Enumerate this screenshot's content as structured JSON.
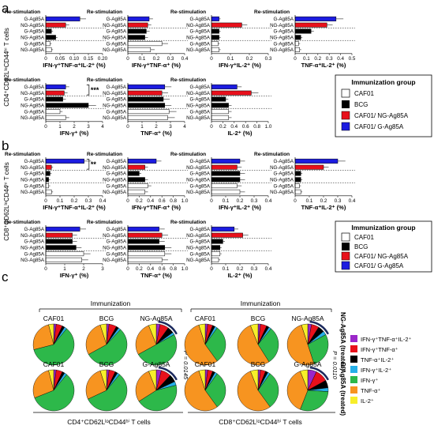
{
  "panel_labels": [
    "a",
    "b",
    "c"
  ],
  "restim_label": "Re-stimulation",
  "row_labels": [
    "G-Ag85A",
    "NG-Ag85A",
    "G-Ag85A",
    "NG-Ag85A",
    "G-Ag85A",
    "NG-Ag85A"
  ],
  "legend": {
    "title": "Immunization group",
    "items": [
      {
        "label": "CAF01",
        "color": "#ffffff"
      },
      {
        "label": "BCG",
        "color": "#000000"
      },
      {
        "label": "CAF01/ NG-Ag85A",
        "color": "#e8101b"
      },
      {
        "label": "CAF01/ G-Ag85A",
        "color": "#1c1ce0"
      }
    ]
  },
  "group_colors": [
    "#1c1ce0",
    "#e8101b",
    "#000000",
    "#000000",
    "#ffffff",
    "#ffffff"
  ],
  "sections": {
    "a": {
      "ylabel": "CD4⁺CD62LˡᵒCD44ʰⁱ T cells",
      "panels": [
        {
          "xlabel": "IFN-γ⁺TNF-α⁺IL-2⁺ (%)",
          "ticks": [
            "0",
            "0.05",
            "0.10",
            "0.15",
            "0.20"
          ],
          "max": 0.2,
          "values": [
            0.12,
            0.07,
            0.02,
            0.035,
            0.015,
            0.02
          ],
          "sig": ""
        },
        {
          "xlabel": "IFN-γ⁺TNF-α⁺ (%)",
          "ticks": [
            "0",
            "0.1",
            "0.2",
            "0.3",
            "0.4"
          ],
          "max": 0.4,
          "values": [
            0.15,
            0.14,
            0.13,
            0.12,
            0.24,
            0.16
          ],
          "sig": ""
        },
        {
          "xlabel": "IFN-γ⁺IL-2⁺ (%)",
          "ticks": [
            "0",
            "0.1",
            "0.2",
            "0.3"
          ],
          "max": 0.3,
          "values": [
            0.04,
            0.16,
            0.04,
            0.04,
            0.035,
            0.04
          ],
          "sig": ""
        },
        {
          "xlabel": "TNF-α⁺IL-2⁺ (%)",
          "ticks": [
            "0",
            "0.1",
            "0.2",
            "0.3",
            "0.4",
            "0.5"
          ],
          "max": 0.5,
          "values": [
            0.36,
            0.28,
            0.14,
            0.05,
            0.03,
            0.04
          ],
          "sig": ""
        },
        {
          "xlabel": "IFN-γ⁺ (%)",
          "ticks": [
            "0",
            "1",
            "2",
            "3",
            "4"
          ],
          "max": 4,
          "values": [
            1.4,
            1.3,
            1.2,
            3.0,
            1.0,
            1.4
          ],
          "sig": "***"
        },
        {
          "xlabel": "TNF-α⁺ (%)",
          "ticks": [
            "0",
            "1",
            "2",
            "3",
            "4"
          ],
          "max": 4,
          "values": [
            2.6,
            2.4,
            2.5,
            2.6,
            2.9,
            2.8
          ],
          "sig": ""
        },
        {
          "xlabel": "IL-2⁺ (%)",
          "ticks": [
            "0",
            "0.2",
            "0.4",
            "0.6",
            "0.8",
            "1.0"
          ],
          "max": 1.0,
          "values": [
            0.45,
            0.7,
            0.25,
            0.3,
            0.3,
            0.3
          ],
          "sig": ""
        }
      ]
    },
    "b": {
      "ylabel": "CD8⁺CD62LˡᵒCD44ʰⁱ T cells",
      "panels": [
        {
          "xlabel": "IFN-γ⁺TNF-α⁺IL-2⁺ (%)",
          "ticks": [
            "0",
            "0.1",
            "0.2",
            "0.3",
            "0.4"
          ],
          "max": 0.4,
          "values": [
            0.27,
            0.04,
            0.03,
            0.02,
            0.02,
            0.04
          ],
          "sig": "**"
        },
        {
          "xlabel": "IFN-γ⁺TNF-α⁺ (%)",
          "ticks": [
            "0",
            "0.2",
            "0.4",
            "0.6",
            "0.8",
            "1.0"
          ],
          "max": 1.0,
          "values": [
            0.5,
            0.3,
            0.2,
            0.3,
            0.35,
            0.3
          ],
          "sig": ""
        },
        {
          "xlabel": "IFN-γ⁺IL-2⁺ (%)",
          "ticks": [
            "0",
            "0.1",
            "0.2",
            "0.3",
            "0.4"
          ],
          "max": 0.4,
          "values": [
            0.2,
            0.18,
            0.2,
            0.2,
            0.18,
            0.2
          ],
          "sig": ""
        },
        {
          "xlabel": "TNF-α⁺IL-2⁺ (%)",
          "ticks": [
            "0",
            "0.1",
            "0.2",
            "0.3",
            "0.4"
          ],
          "max": 0.4,
          "values": [
            0.3,
            0.2,
            0.04,
            0.04,
            0.03,
            0.04
          ],
          "sig": ""
        },
        {
          "xlabel": "IFN-γ⁺ (%)",
          "ticks": [
            "0",
            "1",
            "2",
            "3"
          ],
          "max": 3,
          "values": [
            1.8,
            1.4,
            1.4,
            1.6,
            2.0,
            1.9
          ],
          "sig": ""
        },
        {
          "xlabel": "TNF-α⁺ (%)",
          "ticks": [
            "0",
            "0.2",
            "0.4",
            "0.6",
            "0.8",
            "1.0"
          ],
          "max": 1.0,
          "values": [
            0.55,
            0.6,
            0.55,
            0.65,
            0.65,
            0.6
          ],
          "sig": ""
        },
        {
          "xlabel": "IL-2⁺ (%)",
          "ticks": [
            "0",
            "0.1",
            "0.2",
            "0.3",
            "0.4"
          ],
          "max": 0.4,
          "values": [
            0.16,
            0.22,
            0.08,
            0.06,
            0.06,
            0.05
          ],
          "sig": ""
        }
      ]
    }
  },
  "section_c": {
    "immunization_label": "Immunization",
    "cd4_caption": "CD4⁺CD62LˡᵒCD44ʰⁱ T cells",
    "cd8_caption": "CD8⁺CD62LˡᵒCD44ʰⁱ T cells",
    "pval_cd4": "P = 0.0145",
    "pval_cd8": "P = 0.0110",
    "row1_side": "NG-Ag85A (treated)",
    "row2_side": "G-Ag85A (treated)",
    "pie_labels": [
      "CAF01",
      "BCG",
      "NG-Ag85A",
      "CAF01",
      "BCG",
      "G-Ag85A"
    ],
    "legend": [
      {
        "label": "IFN-γ⁺TNF-α⁺IL-2⁺",
        "color": "#9b27c9"
      },
      {
        "label": "IFN-γ⁺TNF-α⁺",
        "color": "#e8101b"
      },
      {
        "label": "TNF-α⁺IL-2⁺",
        "color": "#000000"
      },
      {
        "label": "IFN-γ⁺IL-2⁺",
        "color": "#26b0e8"
      },
      {
        "label": "IFN-γ⁺",
        "color": "#2db84a"
      },
      {
        "label": "TNF-α⁺",
        "color": "#f79420"
      },
      {
        "label": "IL-2⁺",
        "color": "#f7ee2a"
      }
    ],
    "pies_cd4": [
      [
        0.02,
        0.05,
        0.02,
        0.02,
        0.6,
        0.25,
        0.04
      ],
      [
        0.02,
        0.06,
        0.02,
        0.02,
        0.55,
        0.28,
        0.05
      ],
      [
        0.03,
        0.07,
        0.05,
        0.02,
        0.5,
        0.27,
        0.06
      ],
      [
        0.02,
        0.05,
        0.02,
        0.02,
        0.58,
        0.27,
        0.04
      ],
      [
        0.02,
        0.05,
        0.02,
        0.02,
        0.57,
        0.27,
        0.05
      ],
      [
        0.04,
        0.08,
        0.06,
        0.03,
        0.45,
        0.28,
        0.06
      ]
    ],
    "pies_cd8": [
      [
        0.02,
        0.04,
        0.02,
        0.02,
        0.3,
        0.55,
        0.05
      ],
      [
        0.02,
        0.05,
        0.02,
        0.02,
        0.3,
        0.53,
        0.06
      ],
      [
        0.03,
        0.06,
        0.05,
        0.03,
        0.28,
        0.5,
        0.05
      ],
      [
        0.02,
        0.04,
        0.02,
        0.02,
        0.3,
        0.55,
        0.05
      ],
      [
        0.02,
        0.04,
        0.02,
        0.02,
        0.3,
        0.54,
        0.06
      ],
      [
        0.07,
        0.1,
        0.06,
        0.03,
        0.3,
        0.38,
        0.06
      ]
    ]
  }
}
